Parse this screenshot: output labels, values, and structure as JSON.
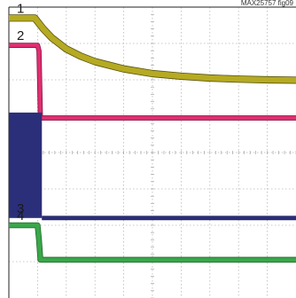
{
  "figure_ref": "MAX25757 fig09",
  "chart_data": {
    "type": "line",
    "title": "",
    "xlabel": "",
    "ylabel": "",
    "grid": true,
    "x_divisions": 10,
    "y_divisions": 8,
    "xlim": [
      0,
      10
    ],
    "ylim": [
      0,
      8
    ],
    "series": [
      {
        "name": "1",
        "color": "#b5aa22",
        "edge_color": "#5a5410",
        "trace_width_div": 0.16,
        "x": [
          0,
          0.9,
          1.0,
          1.2,
          1.5,
          2.0,
          2.5,
          3.0,
          4.0,
          5.0,
          6.0,
          7.0,
          8.0,
          9.0,
          10.0
        ],
        "y": [
          7.7,
          7.7,
          7.6,
          7.4,
          7.15,
          6.85,
          6.65,
          6.5,
          6.3,
          6.17,
          6.1,
          6.05,
          6.02,
          6.0,
          5.99
        ]
      },
      {
        "name": "2",
        "color": "#de2f71",
        "edge_color": "#8a1040",
        "trace_width_div": 0.1,
        "x": [
          0,
          1.0,
          1.05,
          1.1,
          10.0
        ],
        "y": [
          6.95,
          6.95,
          6.8,
          4.95,
          4.95
        ]
      },
      {
        "name": "3",
        "color": "#2b2f7a",
        "edge_color": "#1a1d55",
        "trace_width_div": 0.08,
        "burst_x": [
          0,
          1.15
        ],
        "burst_y": [
          2.2,
          5.1
        ],
        "x": [
          1.15,
          10.0
        ],
        "y": [
          2.2,
          2.2
        ]
      },
      {
        "name": "4",
        "color": "#3aa64a",
        "edge_color": "#1f6a2a",
        "trace_width_div": 0.12,
        "x": [
          0,
          1.0,
          1.05,
          1.1,
          10.0
        ],
        "y": [
          2.0,
          2.0,
          1.6,
          1.05,
          1.05
        ]
      }
    ]
  }
}
